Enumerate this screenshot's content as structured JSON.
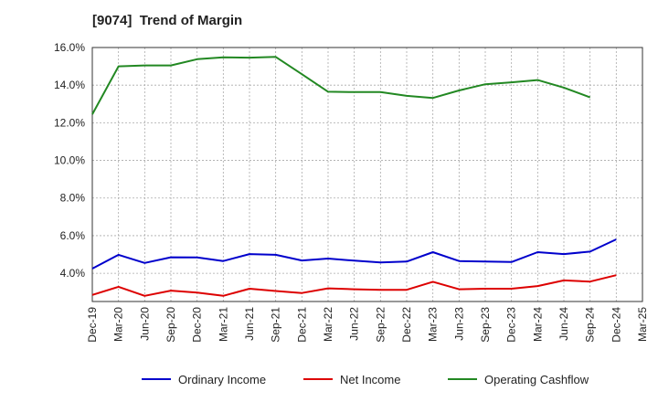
{
  "chart_data": {
    "type": "line",
    "title": "[9074]  Trend of Margin",
    "xlabel": "",
    "ylabel": "",
    "ylim": [
      2.5,
      16.0
    ],
    "yticks": [
      "4.0%",
      "6.0%",
      "8.0%",
      "10.0%",
      "12.0%",
      "14.0%",
      "16.0%"
    ],
    "categories": [
      "Dec-19",
      "Mar-20",
      "Jun-20",
      "Sep-20",
      "Dec-20",
      "Mar-21",
      "Jun-21",
      "Sep-21",
      "Dec-21",
      "Mar-22",
      "Jun-22",
      "Sep-22",
      "Dec-22",
      "Mar-23",
      "Jun-23",
      "Sep-23",
      "Dec-23",
      "Mar-24",
      "Jun-24",
      "Sep-24",
      "Dec-24",
      "Mar-25"
    ],
    "grid": true,
    "legend_position": "bottom",
    "series": [
      {
        "name": "Ordinary Income",
        "color": "#0000cc",
        "values": [
          4.25,
          4.98,
          4.55,
          4.85,
          4.84,
          4.65,
          5.02,
          4.98,
          4.68,
          4.78,
          4.67,
          4.58,
          4.62,
          5.12,
          4.65,
          4.62,
          4.6,
          5.12,
          5.02,
          5.15,
          5.8,
          null
        ]
      },
      {
        "name": "Net Income",
        "color": "#dd0000",
        "values": [
          2.85,
          3.28,
          2.8,
          3.08,
          2.97,
          2.8,
          3.18,
          3.06,
          2.95,
          3.2,
          3.15,
          3.12,
          3.12,
          3.55,
          3.15,
          3.18,
          3.18,
          3.32,
          3.62,
          3.56,
          3.9,
          null
        ]
      },
      {
        "name": "Operating Cashflow",
        "color": "#228822",
        "values": [
          12.45,
          15.0,
          15.05,
          15.05,
          15.38,
          15.48,
          15.46,
          15.5,
          14.58,
          13.65,
          13.63,
          13.63,
          13.43,
          13.32,
          13.72,
          14.05,
          14.15,
          14.27,
          13.87,
          13.35,
          null,
          null
        ]
      }
    ]
  }
}
